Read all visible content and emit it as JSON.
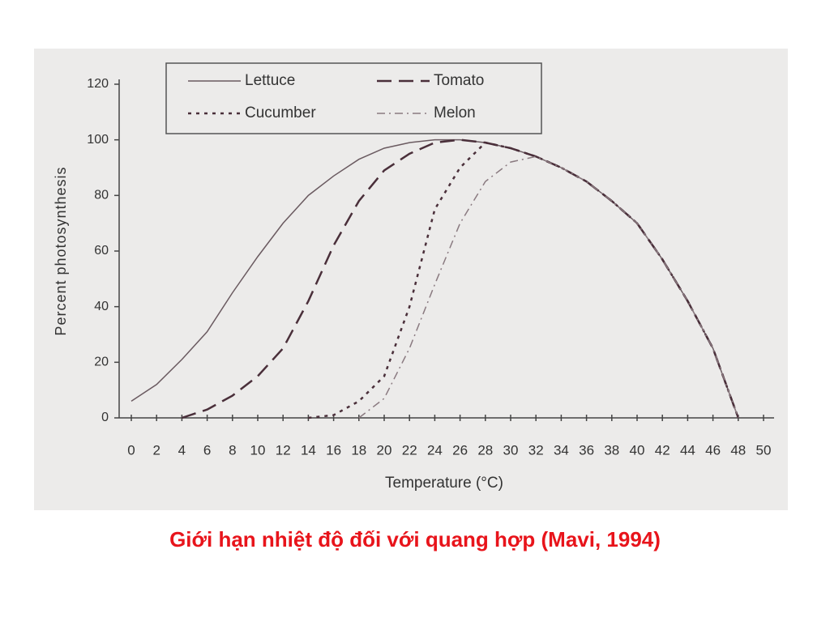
{
  "chart_data": {
    "type": "line",
    "xlabel": "Temperature (°C)",
    "ylabel": "Percent photosynthesis",
    "x": [
      0,
      2,
      4,
      6,
      8,
      10,
      12,
      14,
      16,
      18,
      20,
      22,
      24,
      26,
      28,
      30,
      32,
      34,
      36,
      38,
      40,
      42,
      44,
      46,
      48
    ],
    "series": [
      {
        "name": "Lettuce",
        "color": "#6a5a60",
        "style": "solid",
        "values": [
          6,
          12,
          21,
          31,
          45,
          58,
          70,
          80,
          87,
          93,
          97,
          99,
          100,
          100,
          99,
          97,
          94,
          90,
          85,
          78,
          70,
          57,
          42,
          25,
          0
        ]
      },
      {
        "name": "Tomato",
        "color": "#4a2f3a",
        "style": "dashed",
        "values": [
          null,
          null,
          0,
          3,
          8,
          15,
          25,
          42,
          62,
          78,
          89,
          95,
          99,
          100,
          99,
          97,
          94,
          90,
          85,
          78,
          70,
          57,
          42,
          25,
          0
        ]
      },
      {
        "name": "Cucumber",
        "color": "#4a2f3a",
        "style": "dotted",
        "values": [
          null,
          null,
          null,
          null,
          null,
          null,
          null,
          0,
          1,
          6,
          15,
          40,
          75,
          90,
          99,
          97,
          94,
          90,
          85,
          78,
          70,
          57,
          42,
          25,
          0
        ]
      },
      {
        "name": "Melon",
        "color": "#8a7a80",
        "style": "dashdot",
        "values": [
          null,
          null,
          null,
          null,
          null,
          null,
          null,
          null,
          null,
          0,
          7,
          25,
          48,
          70,
          85,
          92,
          94,
          90,
          85,
          78,
          70,
          57,
          42,
          25,
          0
        ]
      }
    ],
    "xlim": [
      0,
      50
    ],
    "ylim": [
      0,
      120
    ],
    "xticks": [
      0,
      2,
      4,
      6,
      8,
      10,
      12,
      14,
      16,
      18,
      20,
      22,
      24,
      26,
      28,
      30,
      32,
      34,
      36,
      38,
      40,
      42,
      44,
      46,
      48,
      50
    ],
    "yticks": [
      0,
      20,
      40,
      60,
      80,
      100,
      120
    ],
    "grid": false,
    "legend": "top"
  },
  "caption": "Giới hạn nhiệt độ đối với quang hợp (Mavi, 1994)"
}
